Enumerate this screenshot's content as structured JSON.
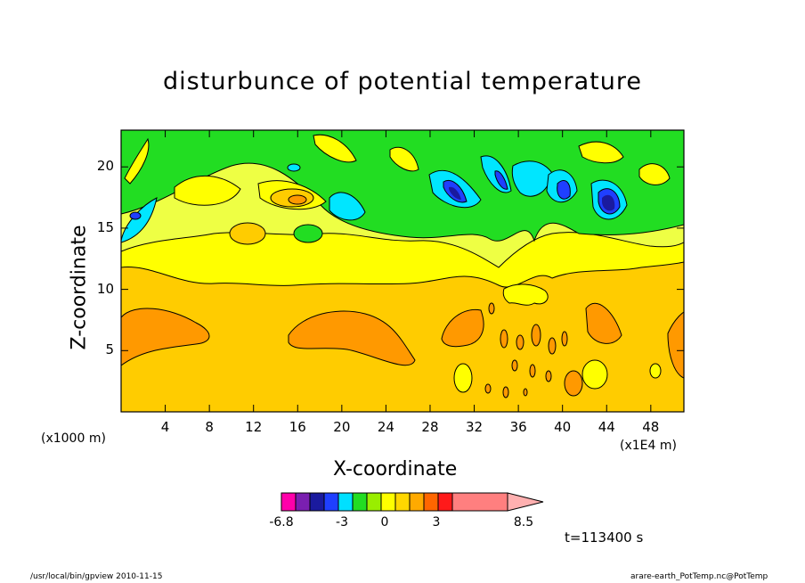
{
  "chart_data": {
    "type": "contour",
    "title": "disturbunce of potential temperature",
    "xlabel": "X-coordinate",
    "ylabel": "Z-coordinate",
    "x_unit_note": "(x1000 m)",
    "x_unit_right": "(x1E4 m)",
    "xlim": [
      0,
      51
    ],
    "ylim": [
      0,
      23
    ],
    "x_ticks": [
      "4",
      "8",
      "12",
      "16",
      "20",
      "24",
      "28",
      "32",
      "36",
      "40",
      "44",
      "48"
    ],
    "y_ticks": [
      "5",
      "10",
      "15",
      "20"
    ],
    "colorbar": {
      "labels": [
        "-6.8",
        "-3",
        "0",
        "3",
        "8.5"
      ],
      "colors": [
        "#ff00aa",
        "#7a1fb0",
        "#1a1a9e",
        "#1f3fff",
        "#00e0ff",
        "#22dd22",
        "#99ee00",
        "#ffff00",
        "#ffd700",
        "#ffaa00",
        "#ff6600",
        "#ff1a1a",
        "#ff7f7f",
        "#ffb0b0"
      ]
    },
    "time_label": "t=113400 s"
  },
  "footer": {
    "left": "/usr/local/bin/gpview  2010-11-15",
    "right": "arare-earth_PotTemp.nc@PotTemp"
  },
  "palette": {
    "gold": "#ffcc00",
    "orange": "#ff9900",
    "yellow": "#ffff00",
    "lightyellow": "#eeff44",
    "green": "#22dd22",
    "cyan": "#00e6ff",
    "blue": "#1f3fff",
    "navy": "#1a1a9e"
  }
}
